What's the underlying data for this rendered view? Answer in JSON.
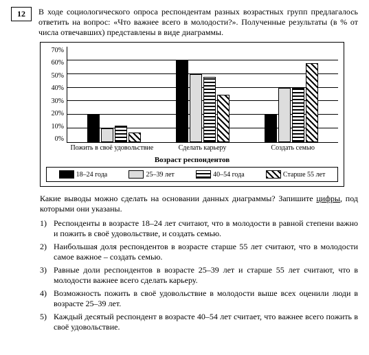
{
  "question_number": "12",
  "intro_text": "В ходе социологического опроса респондентам разных возрастных групп предлагалось ответить на вопрос: «Что важнее всего в молодости?». Полученные результаты (в % от числа отвечавших) представлены в виде диаграммы.",
  "chart": {
    "type": "bar",
    "ymax": 70,
    "ytick_step": 10,
    "yticks": [
      "70%",
      "60%",
      "50%",
      "40%",
      "30%",
      "20%",
      "10%",
      "0%"
    ],
    "gridline_percents": [
      14.29,
      28.57,
      42.86,
      57.14,
      71.43,
      85.71
    ],
    "categories": [
      {
        "label": "Пожить в своё удовольствие",
        "values": [
          20,
          10,
          12,
          7
        ]
      },
      {
        "label": "Сделать карьеру",
        "values": [
          60,
          50,
          48,
          35
        ]
      },
      {
        "label": "Создать семью",
        "values": [
          20,
          40,
          40,
          58
        ]
      }
    ],
    "series": [
      {
        "label": "18–24 года",
        "fill": "solid"
      },
      {
        "label": "25–39 лет",
        "fill": "light"
      },
      {
        "label": "40–54 года",
        "fill": "hstripe"
      },
      {
        "label": "Старше 55 лет",
        "fill": "diag"
      }
    ],
    "legend_title": "Возраст респондентов"
  },
  "prompt_before": "Какие выводы можно сделать на основании данных диаграммы? Запишите ",
  "prompt_underlined": "цифры",
  "prompt_after": ", под которыми они указаны.",
  "answers": [
    {
      "n": "1)",
      "t": "Респонденты в возрасте 18–24 лет считают, что в молодости в равной степени важно и пожить в своё удовольствие, и создать семью."
    },
    {
      "n": "2)",
      "t": "Наибольшая доля респондентов в возрасте старше 55 лет считают, что в молодости самое важное – создать семью."
    },
    {
      "n": "3)",
      "t": "Равные доли респондентов в возрасте 25–39 лет и старше 55 лет считают, что в молодости важнее всего сделать карьеру."
    },
    {
      "n": "4)",
      "t": "Возможность пожить в своё удовольствие в молодости выше всех оценили люди в возрасте 25–39 лет."
    },
    {
      "n": "5)",
      "t": "Каждый десятый респондент в возрасте 40–54 лет считает, что важнее всего пожить в своё удовольствие."
    }
  ]
}
